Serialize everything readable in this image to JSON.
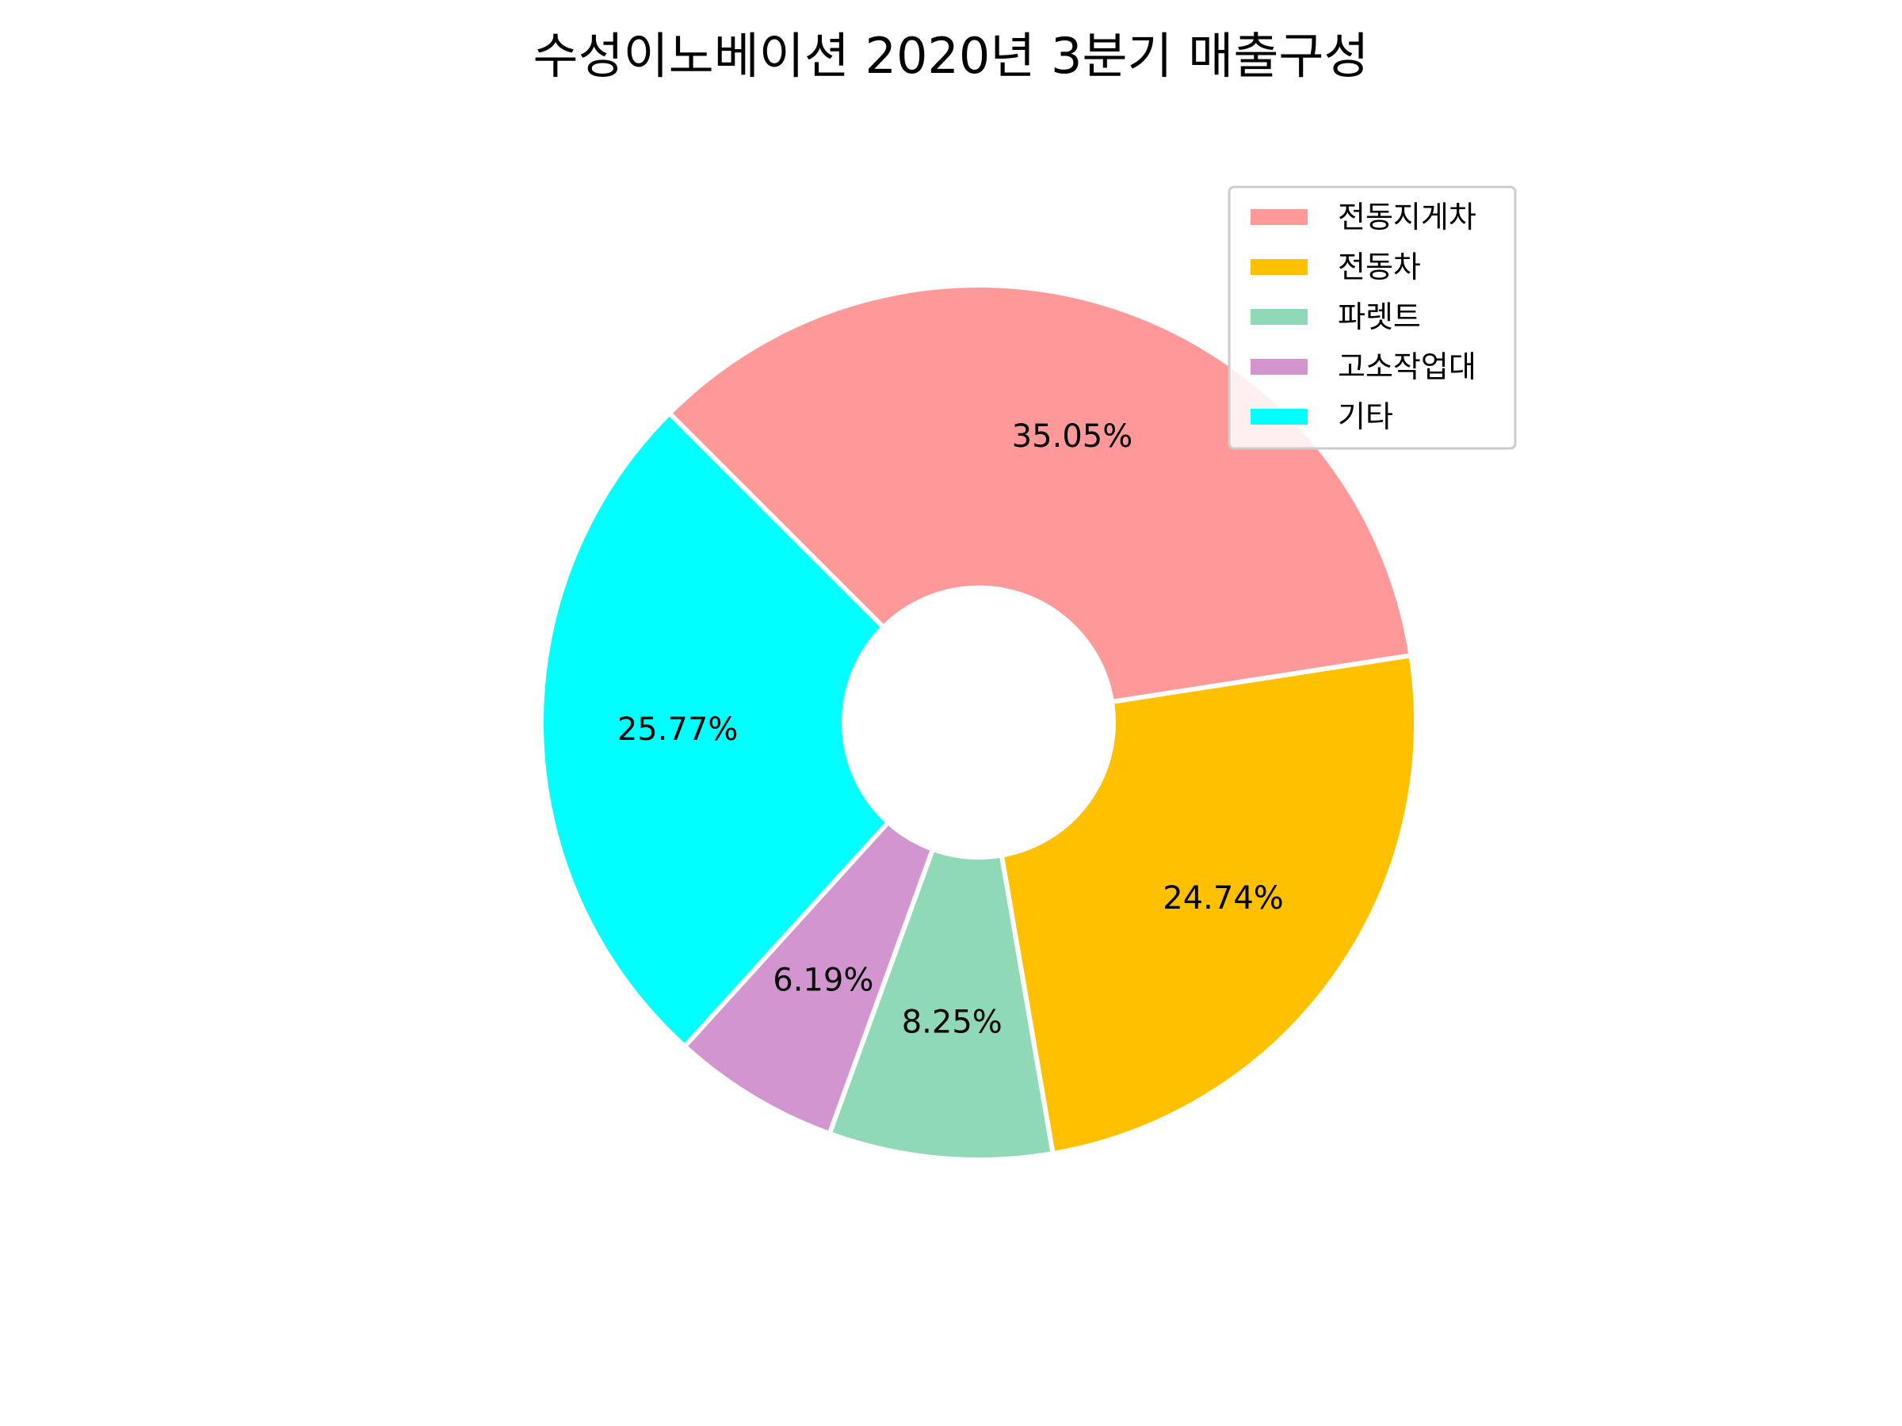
{
  "chart_data": {
    "type": "pie",
    "donut": true,
    "title": "수성이노베이션 2020년 3분기 매출구성",
    "start_angle_deg": 135,
    "direction": "clockwise",
    "legend_position": "top-right",
    "slices": [
      {
        "label": "전동지게차",
        "value": 35.05,
        "value_label": "35.05%",
        "color": "#ff9999"
      },
      {
        "label": "전동차",
        "value": 24.74,
        "value_label": "24.74%",
        "color": "#ffc000"
      },
      {
        "label": "파렛트",
        "value": 8.25,
        "value_label": "8.25%",
        "color": "#8fd9b6"
      },
      {
        "label": "고소작업대",
        "value": 6.19,
        "value_label": "6.19%",
        "color": "#d395d0"
      },
      {
        "label": "기타",
        "value": 25.77,
        "value_label": "25.77%",
        "color": "#00ffff"
      }
    ]
  }
}
